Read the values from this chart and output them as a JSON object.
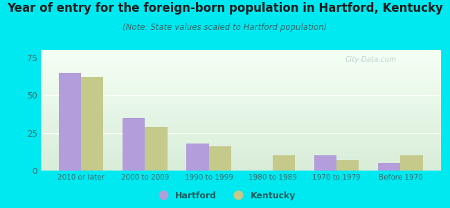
{
  "title": "Year of entry for the foreign-born population in Hartford, Kentucky",
  "subtitle": "(Note: State values scaled to Hartford population)",
  "categories": [
    "2010 or later",
    "2000 to 2009",
    "1990 to 1999",
    "1980 to 1989",
    "1970 to 1979",
    "Before 1970"
  ],
  "hartford_values": [
    65,
    35,
    18,
    0,
    10,
    5
  ],
  "kentucky_values": [
    62,
    29,
    16,
    10,
    7,
    10
  ],
  "hartford_color": "#b39ddb",
  "kentucky_color": "#c5c98a",
  "background_color": "#00e8f0",
  "grad_top": "#f4fff4",
  "grad_bottom": "#d8ecd8",
  "title_fontsize": 12,
  "subtitle_fontsize": 8.5,
  "bar_width": 0.35,
  "ylim": [
    0,
    80
  ],
  "yticks": [
    0,
    25,
    50,
    75
  ],
  "tick_color": "#336666",
  "label_color": "#1a5c5c",
  "watermark": "City-Data.com"
}
